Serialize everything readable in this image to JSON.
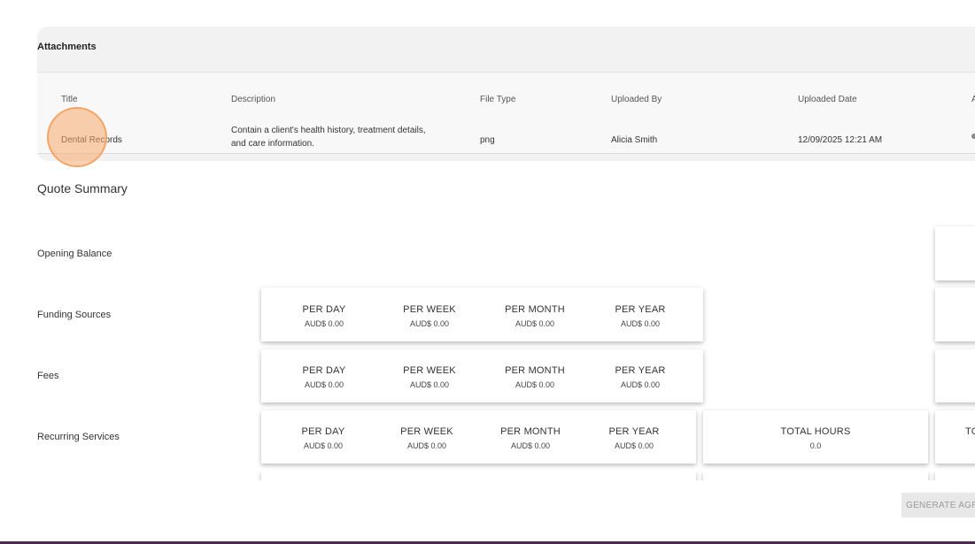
{
  "attachments": {
    "title": "Attachments",
    "columns": [
      "Title",
      "Description",
      "File Type",
      "Uploaded By",
      "Uploaded Date"
    ],
    "rows": [
      {
        "title": "Dental Records",
        "description": "Contain a client's health history, treatment details, and care information.",
        "file_type": "png",
        "uploaded_by": "Alicia Smith",
        "uploaded_date": "12/09/2025 12:21 AM"
      }
    ]
  },
  "quote_summary": {
    "title": "Quote Summary",
    "rows": [
      {
        "label": "Opening Balance"
      },
      {
        "label": "Funding Sources",
        "periods": [
          {
            "label": "PER DAY",
            "value": "AUD$ 0.00"
          },
          {
            "label": "PER WEEK",
            "value": "AUD$ 0.00"
          },
          {
            "label": "PER MONTH",
            "value": "AUD$ 0.00"
          },
          {
            "label": "PER YEAR",
            "value": "AUD$ 0.00"
          }
        ]
      },
      {
        "label": "Fees",
        "periods": [
          {
            "label": "PER DAY",
            "value": "AUD$ 0.00"
          },
          {
            "label": "PER WEEK",
            "value": "AUD$ 0.00"
          },
          {
            "label": "PER MONTH",
            "value": "AUD$ 0.00"
          },
          {
            "label": "PER YEAR",
            "value": "AUD$ 0.00"
          }
        ]
      },
      {
        "label": "Recurring Services",
        "periods": [
          {
            "label": "PER DAY",
            "value": "AUD$ 0.00"
          },
          {
            "label": "PER WEEK",
            "value": "AUD$ 0.00"
          },
          {
            "label": "PER MONTH",
            "value": "AUD$ 0.00"
          },
          {
            "label": "PER YEAR",
            "value": "AUD$ 0.00"
          }
        ],
        "total_hours": {
          "label": "TOTAL HOURS",
          "value": "0.0"
        },
        "cut_label": "TO"
      }
    ]
  },
  "actions": {
    "generate_label": "GENERATE AGR"
  }
}
